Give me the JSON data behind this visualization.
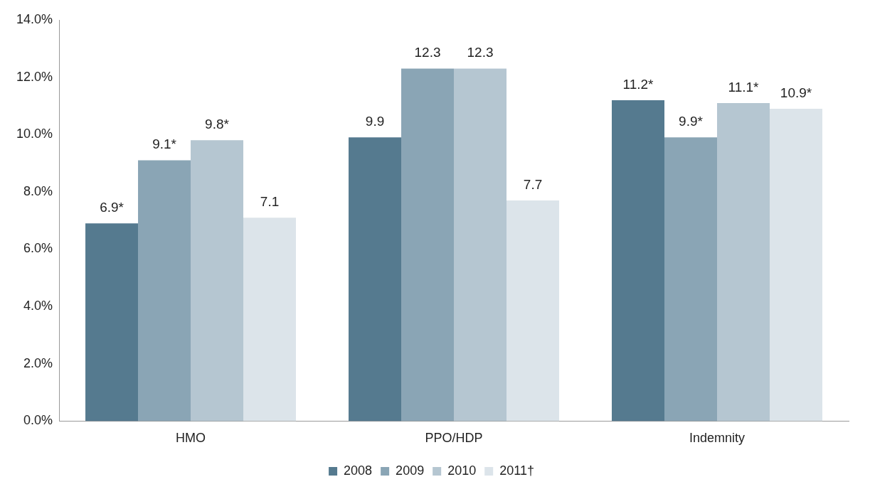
{
  "chart_data": {
    "type": "bar",
    "categories": [
      "HMO",
      "PPO/HDP",
      "Indemnity"
    ],
    "series": [
      {
        "name": "2008",
        "color": "#557a8f",
        "values": [
          6.9,
          9.9,
          11.2
        ],
        "value_labels": [
          "6.9*",
          "9.9",
          "11.2*"
        ]
      },
      {
        "name": "2009",
        "color": "#8aa5b5",
        "values": [
          9.1,
          12.3,
          9.9
        ],
        "value_labels": [
          "9.1*",
          "12.3",
          "9.9*"
        ]
      },
      {
        "name": "2010",
        "color": "#b5c6d1",
        "values": [
          9.8,
          12.3,
          11.1
        ],
        "value_labels": [
          "9.8*",
          "12.3",
          "11.1*"
        ]
      },
      {
        "name": "2011†",
        "color": "#dce4ea",
        "values": [
          7.1,
          7.7,
          10.9
        ],
        "value_labels": [
          "7.1",
          "7.7",
          "10.9*"
        ]
      }
    ],
    "ylim": [
      0,
      14
    ],
    "yticks": [
      {
        "value": 0,
        "label": "0.0%"
      },
      {
        "value": 2,
        "label": "2.0%"
      },
      {
        "value": 4,
        "label": "4.0%"
      },
      {
        "value": 6,
        "label": "6.0%"
      },
      {
        "value": 8,
        "label": "8.0%"
      },
      {
        "value": 10,
        "label": "10.0%"
      },
      {
        "value": 12,
        "label": "12.0%"
      },
      {
        "value": 14,
        "label": "14.0%"
      }
    ],
    "grid": false,
    "legend": "bottom"
  }
}
